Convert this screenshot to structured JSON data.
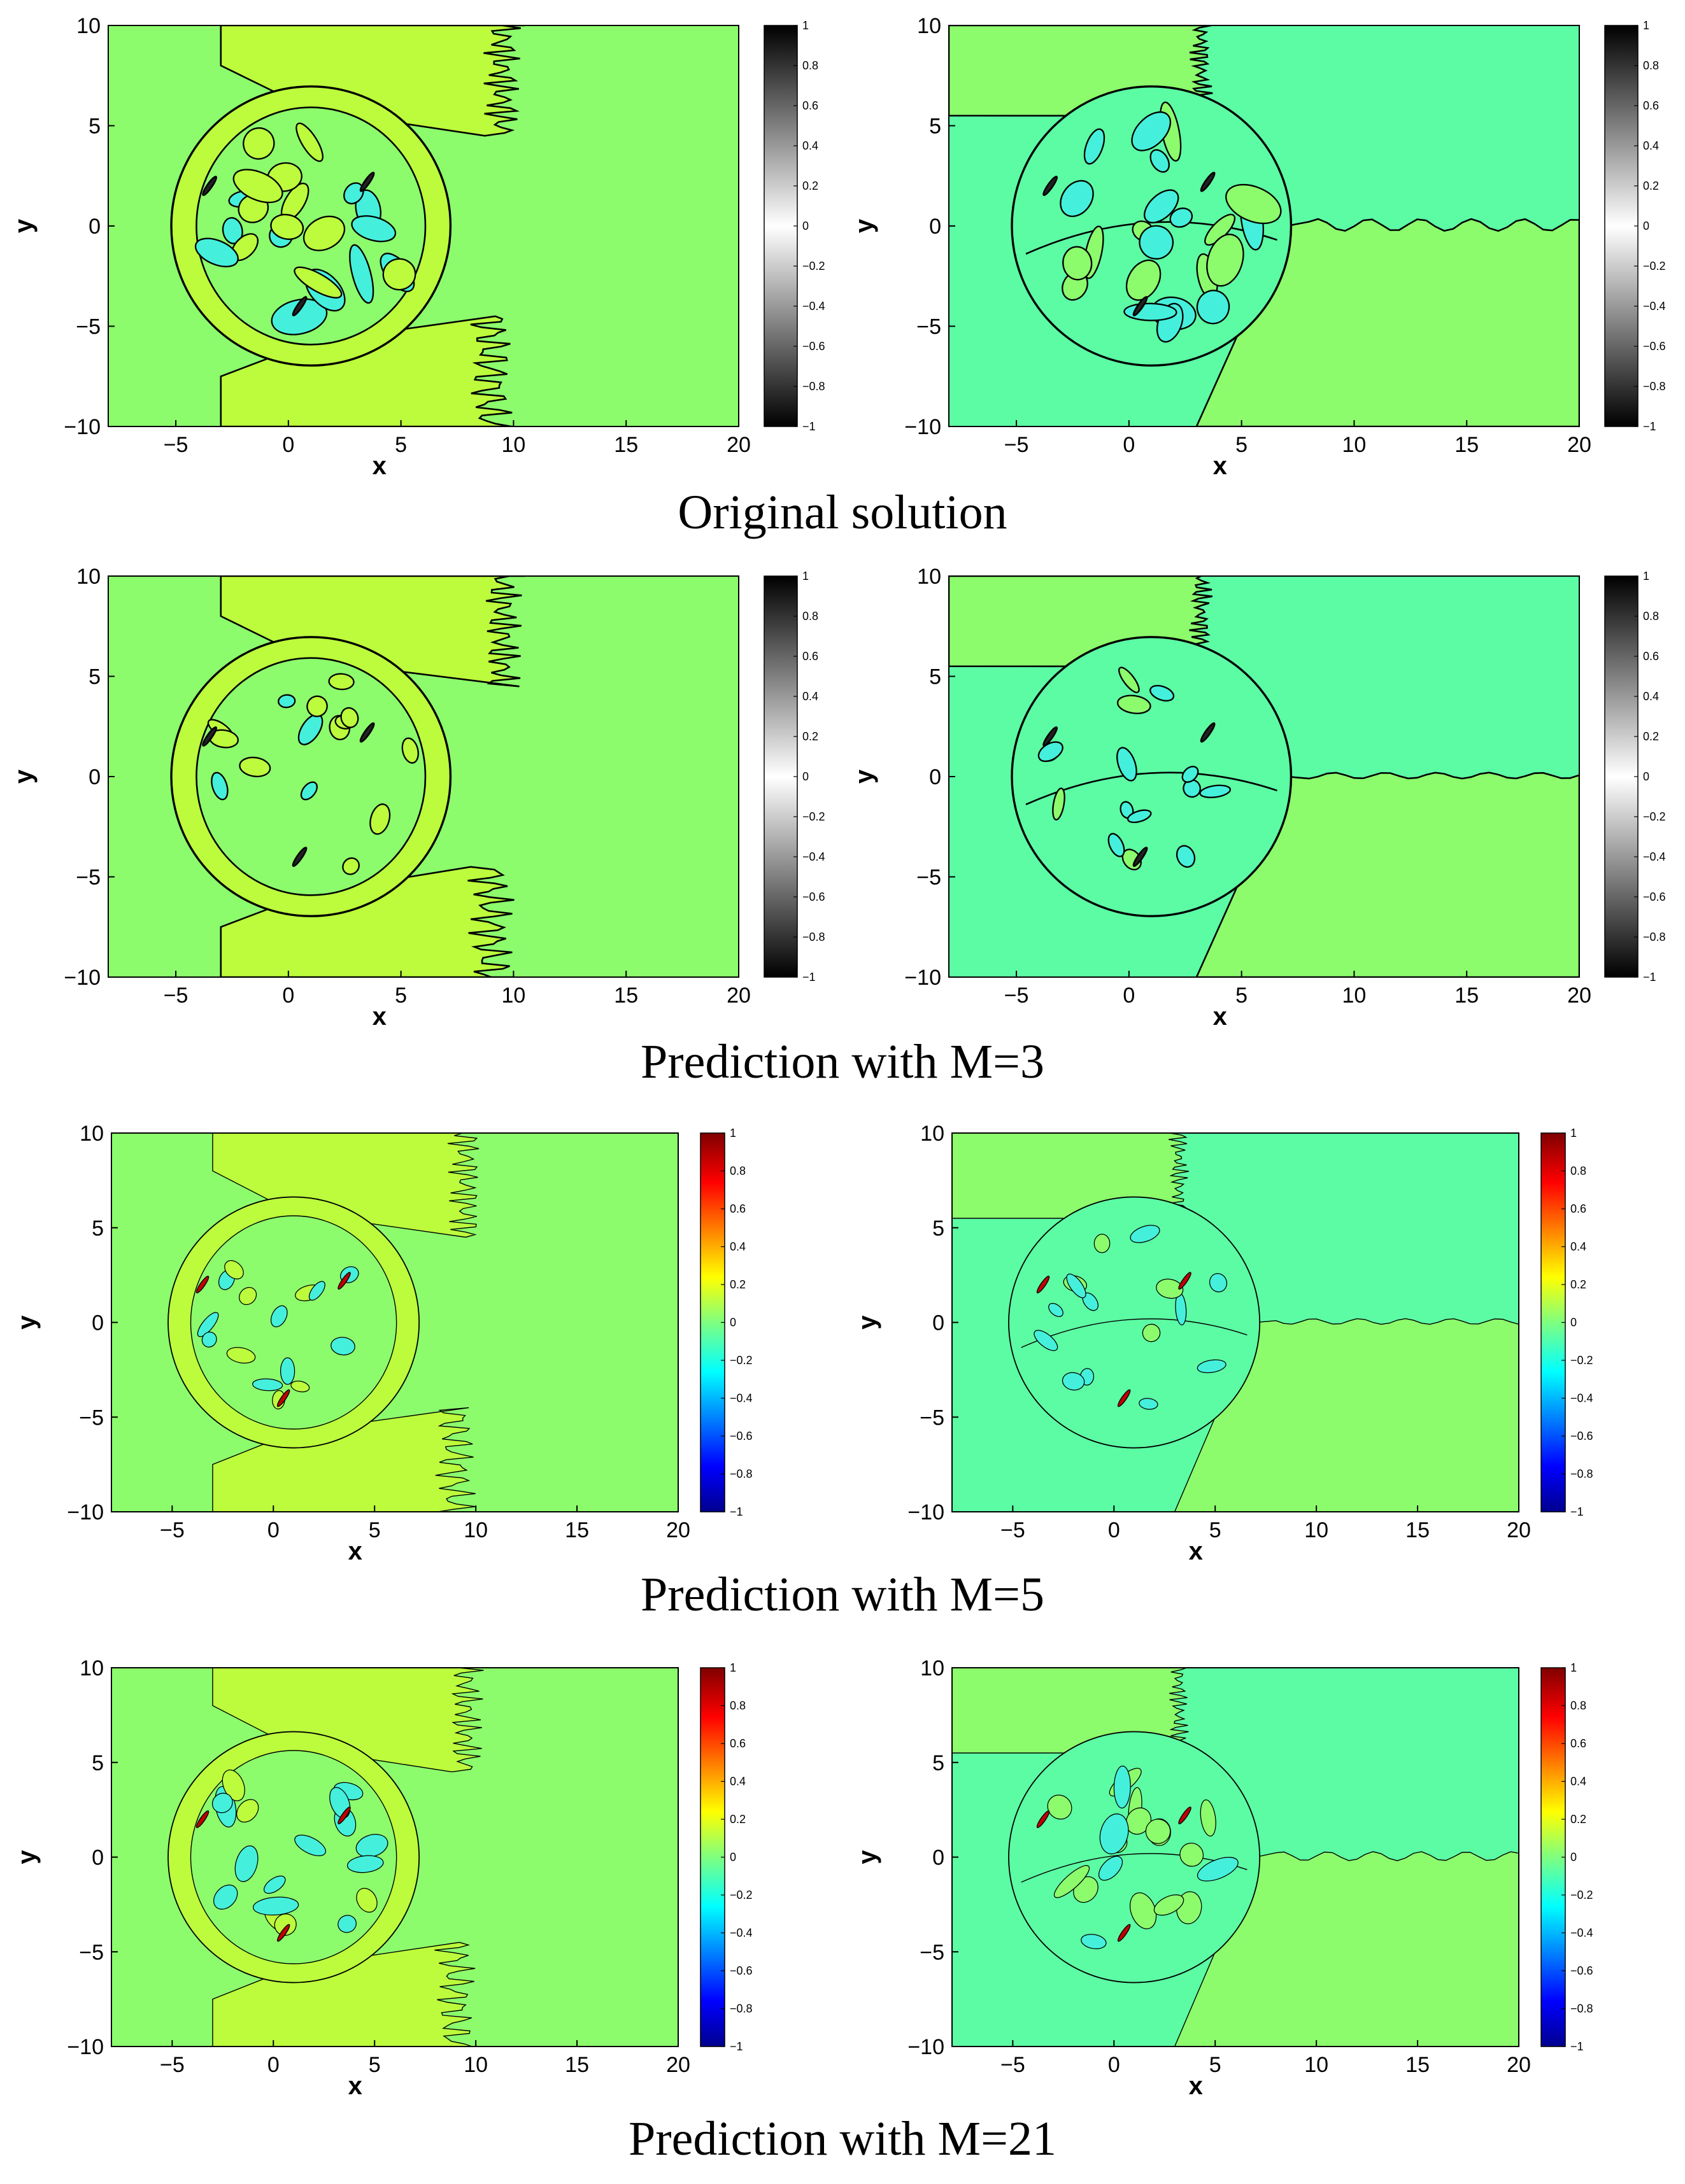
{
  "chart_data": [
    {
      "type": "contour",
      "row_caption": "Original solution",
      "colormap": "gray",
      "panel": "left",
      "xlabel": "x",
      "ylabel": "y",
      "xlim": [
        -8,
        20
      ],
      "ylim": [
        -10,
        10
      ],
      "xticks": [
        -5,
        0,
        5,
        10,
        15,
        20
      ],
      "yticks": [
        -10,
        -5,
        0,
        5,
        10
      ],
      "colorbar": {
        "ticks": [
          -1,
          -0.8,
          -0.6,
          -0.4,
          -0.2,
          0,
          0.2,
          0.4,
          0.6,
          0.8,
          1
        ]
      }
    },
    {
      "type": "contour",
      "row_caption": "Original solution",
      "colormap": "gray",
      "panel": "right",
      "xlabel": "x",
      "ylabel": "y",
      "xlim": [
        -8,
        20
      ],
      "ylim": [
        -10,
        10
      ],
      "xticks": [
        -5,
        0,
        5,
        10,
        15,
        20
      ],
      "yticks": [
        -10,
        -5,
        0,
        5,
        10
      ],
      "colorbar": {
        "ticks": [
          -1,
          -0.8,
          -0.6,
          -0.4,
          -0.2,
          0,
          0.2,
          0.4,
          0.6,
          0.8,
          1
        ]
      }
    },
    {
      "type": "contour",
      "row_caption": "Prediction with M=3",
      "colormap": "gray",
      "panel": "left",
      "xlabel": "x",
      "ylabel": "y",
      "xlim": [
        -8,
        20
      ],
      "ylim": [
        -10,
        10
      ],
      "xticks": [
        -5,
        0,
        5,
        10,
        15,
        20
      ],
      "yticks": [
        -10,
        -5,
        0,
        5,
        10
      ],
      "colorbar": {
        "ticks": [
          -1,
          -0.8,
          -0.6,
          -0.4,
          -0.2,
          0,
          0.2,
          0.4,
          0.6,
          0.8,
          1
        ]
      }
    },
    {
      "type": "contour",
      "row_caption": "Prediction with M=3",
      "colormap": "gray",
      "panel": "right",
      "xlabel": "x",
      "ylabel": "y",
      "xlim": [
        -8,
        20
      ],
      "ylim": [
        -10,
        10
      ],
      "xticks": [
        -5,
        0,
        5,
        10,
        15,
        20
      ],
      "yticks": [
        -10,
        -5,
        0,
        5,
        10
      ],
      "colorbar": {
        "ticks": [
          -1,
          -0.8,
          -0.6,
          -0.4,
          -0.2,
          0,
          0.2,
          0.4,
          0.6,
          0.8,
          1
        ]
      }
    },
    {
      "type": "contour",
      "row_caption": "Prediction with M=5",
      "colormap": "jet",
      "panel": "left",
      "xlabel": "x",
      "ylabel": "y",
      "xlim": [
        -8,
        20
      ],
      "ylim": [
        -10,
        10
      ],
      "xticks": [
        -5,
        0,
        5,
        10,
        15,
        20
      ],
      "yticks": [
        -10,
        -5,
        0,
        5,
        10
      ],
      "colorbar": {
        "ticks": [
          -1,
          -0.8,
          -0.6,
          -0.4,
          -0.2,
          0,
          0.2,
          0.4,
          0.6,
          0.8,
          1
        ]
      }
    },
    {
      "type": "contour",
      "row_caption": "Prediction with M=5",
      "colormap": "jet",
      "panel": "right",
      "xlabel": "x",
      "ylabel": "y",
      "xlim": [
        -8,
        20
      ],
      "ylim": [
        -10,
        10
      ],
      "xticks": [
        -5,
        0,
        5,
        10,
        15,
        20
      ],
      "yticks": [
        -10,
        -5,
        0,
        5,
        10
      ],
      "colorbar": {
        "ticks": [
          -1,
          -0.8,
          -0.6,
          -0.4,
          -0.2,
          0,
          0.2,
          0.4,
          0.6,
          0.8,
          1
        ]
      }
    },
    {
      "type": "contour",
      "row_caption": "Prediction with M=21",
      "colormap": "jet",
      "panel": "left",
      "xlabel": "x",
      "ylabel": "y",
      "xlim": [
        -8,
        20
      ],
      "ylim": [
        -10,
        10
      ],
      "xticks": [
        -5,
        0,
        5,
        10,
        15,
        20
      ],
      "yticks": [
        -10,
        -5,
        0,
        5,
        10
      ],
      "colorbar": {
        "ticks": [
          -1,
          -0.8,
          -0.6,
          -0.4,
          -0.2,
          0,
          0.2,
          0.4,
          0.6,
          0.8,
          1
        ]
      }
    },
    {
      "type": "contour",
      "row_caption": "Prediction with M=21",
      "colormap": "jet",
      "panel": "right",
      "xlabel": "x",
      "ylabel": "y",
      "xlim": [
        -8,
        20
      ],
      "ylim": [
        -10,
        10
      ],
      "xticks": [
        -5,
        0,
        5,
        10,
        15,
        20
      ],
      "yticks": [
        -10,
        -5,
        0,
        5,
        10
      ],
      "colorbar": {
        "ticks": [
          -1,
          -0.8,
          -0.6,
          -0.4,
          -0.2,
          0,
          0.2,
          0.4,
          0.6,
          0.8,
          1
        ]
      }
    }
  ],
  "captions": [
    "Original solution",
    "Prediction with M=3",
    "Prediction with M=5",
    "Prediction with M=21"
  ],
  "colors": {
    "field_light_green": "#8cfc6c",
    "field_yellow_green": "#bcfc3c",
    "field_aqua_green": "#5cfca4",
    "field_cyan": "#44f0dc",
    "contour_line": "#000000"
  }
}
